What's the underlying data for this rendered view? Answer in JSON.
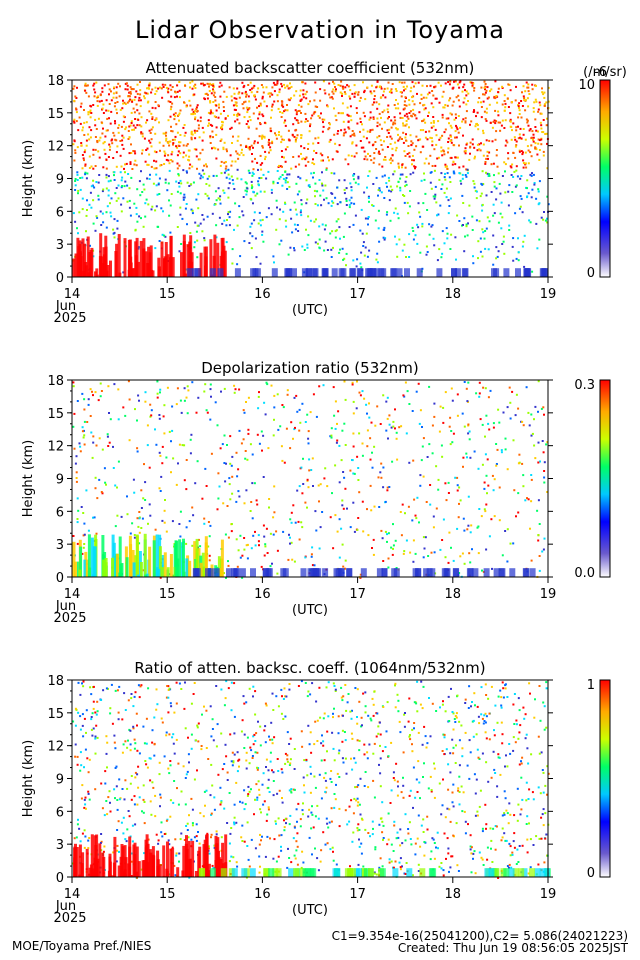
{
  "title": "Lidar Observation in Toyama",
  "footer": {
    "left": "MOE/Toyama Pref./NIES",
    "constants": "C1=9.354e-16(25041200),C2= 5.086(24021223)",
    "created": "Created: Thu Jun 19 08:56:05 2025JST"
  },
  "chart_data": [
    {
      "type": "heatmap",
      "title": "Attenuated backscatter coefficient (532nm)",
      "ylabel": "Height (km)",
      "xlabel": "(UTC)",
      "x_ticks": [
        "14",
        "15",
        "16",
        "17",
        "18",
        "19"
      ],
      "x_subticks": [
        "Jun",
        "2025"
      ],
      "xlim": [
        14,
        19
      ],
      "y_ticks": [
        "0",
        "3",
        "6",
        "9",
        "12",
        "15",
        "18"
      ],
      "ylim": [
        0,
        18
      ],
      "colorbar": {
        "min_label": "0",
        "max_label": "10",
        "exponent": "-6",
        "unit": "(/m/sr)"
      }
    },
    {
      "type": "heatmap",
      "title": "Depolarization ratio (532nm)",
      "ylabel": "Height (km)",
      "xlabel": "(UTC)",
      "x_ticks": [
        "14",
        "15",
        "16",
        "17",
        "18",
        "19"
      ],
      "x_subticks": [
        "Jun",
        "2025"
      ],
      "xlim": [
        14,
        19
      ],
      "y_ticks": [
        "0",
        "3",
        "6",
        "9",
        "12",
        "15",
        "18"
      ],
      "ylim": [
        0,
        18
      ],
      "colorbar": {
        "min_label": "0.0",
        "max_label": "0.3"
      }
    },
    {
      "type": "heatmap",
      "title": "Ratio of atten. backsc. coeff. (1064nm/532nm)",
      "ylabel": "Height (km)",
      "xlabel": "(UTC)",
      "x_ticks": [
        "14",
        "15",
        "16",
        "17",
        "18",
        "19"
      ],
      "x_subticks": [
        "Jun",
        "2025"
      ],
      "xlim": [
        14,
        19
      ],
      "y_ticks": [
        "0",
        "3",
        "6",
        "9",
        "12",
        "15",
        "18"
      ],
      "ylim": [
        0,
        18
      ],
      "colorbar": {
        "min_label": "0",
        "max_label": "1"
      }
    }
  ]
}
